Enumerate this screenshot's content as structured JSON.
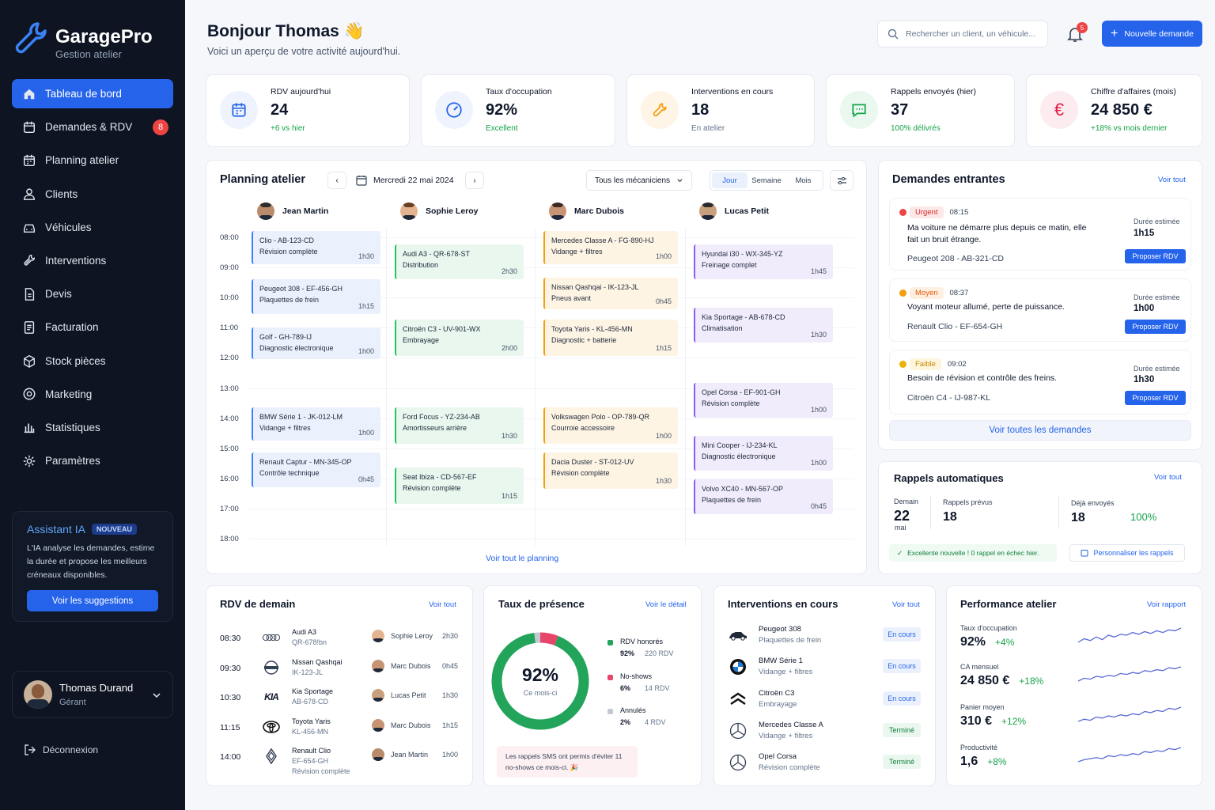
{
  "app": {
    "name": "GaragePro",
    "subtitle": "Gestion atelier"
  },
  "nav": [
    {
      "label": "Tableau de bord",
      "icon": "home-icon",
      "active": true
    },
    {
      "label": "Demandes & RDV",
      "icon": "calendar-icon",
      "badge": "8"
    },
    {
      "label": "Planning atelier",
      "icon": "calendar-grid-icon"
    },
    {
      "label": "Clients",
      "icon": "user-icon"
    },
    {
      "label": "Véhicules",
      "icon": "car-icon"
    },
    {
      "label": "Interventions",
      "icon": "tools-icon"
    },
    {
      "label": "Devis",
      "icon": "document-icon"
    },
    {
      "label": "Facturation",
      "icon": "invoice-icon"
    },
    {
      "label": "Stock pièces",
      "icon": "box-icon"
    },
    {
      "label": "Marketing",
      "icon": "target-icon"
    },
    {
      "label": "Statistiques",
      "icon": "bar-chart-icon"
    },
    {
      "label": "Paramètres",
      "icon": "gear-icon"
    }
  ],
  "ai": {
    "title": "Assistant IA",
    "badge": "NOUVEAU",
    "text": "L'IA analyse les demandes, estime la durée et propose les meilleurs créneaux disponibles.",
    "button": "Voir les suggestions"
  },
  "user": {
    "name": "Thomas Durand",
    "role": "Gérant"
  },
  "logout": "Déconnexion",
  "header": {
    "title": "Bonjour Thomas 👋",
    "subtitle": "Voici un aperçu de votre activité aujourd'hui.",
    "search_placeholder": "Rechercher un client, un véhicule...",
    "notif_count": "5",
    "new_button": "Nouvelle demande"
  },
  "kpis": [
    {
      "label": "RDV aujourd'hui",
      "value": "24",
      "sub": "+6 vs hier",
      "sub_color": "green",
      "icon": "calendar-icon"
    },
    {
      "label": "Taux d'occupation",
      "value": "92%",
      "sub": "Excellent",
      "sub_color": "green",
      "icon": "gauge-icon"
    },
    {
      "label": "Interventions en cours",
      "value": "18",
      "sub": "En atelier",
      "sub_color": "gray",
      "icon": "wrench-icon"
    },
    {
      "label": "Rappels envoyés (hier)",
      "value": "37",
      "sub": "100% délivrés",
      "sub_color": "green",
      "icon": "message-icon"
    },
    {
      "label": "Chiffre d'affaires (mois)",
      "value": "24 850 €",
      "sub": "+18% vs mois dernier",
      "sub_color": "green",
      "icon": "euro-icon"
    }
  ],
  "planning": {
    "title": "Planning atelier",
    "date": "Mercredi 22 mai 2024",
    "filter": "Tous les mécaniciens",
    "views": [
      "Jour",
      "Semaine",
      "Mois"
    ],
    "active_view": "Jour",
    "hours": [
      "08:00",
      "09:00",
      "10:00",
      "11:00",
      "12:00",
      "13:00",
      "14:00",
      "15:00",
      "16:00",
      "17:00",
      "18:00"
    ],
    "mechanics": [
      "Jean Martin",
      "Sophie Leroy",
      "Marc Dubois",
      "Lucas Petit"
    ],
    "events": [
      {
        "col": 0,
        "start": 8.0,
        "end": 9.1,
        "color": "blue",
        "title": "Clio - AB-123-CD",
        "desc": "Révision complète",
        "dur": "1h30"
      },
      {
        "col": 0,
        "start": 9.6,
        "end": 10.75,
        "color": "blue",
        "title": "Peugeot 308 - EF-456-GH",
        "desc": "Plaquettes de frein",
        "dur": "1h15"
      },
      {
        "col": 0,
        "start": 11.2,
        "end": 12.25,
        "color": "blue",
        "title": "Golf - GH-789-IJ",
        "desc": "Diagnostic électronique",
        "dur": "1h00"
      },
      {
        "col": 0,
        "start": 13.85,
        "end": 14.95,
        "color": "blue",
        "title": "BMW Série 1 - JK-012-LM",
        "desc": "Vidange + filtres",
        "dur": "1h00"
      },
      {
        "col": 0,
        "start": 15.35,
        "end": 16.5,
        "color": "blue",
        "title": "Renault Captur - MN-345-OP",
        "desc": "Contrôle technique",
        "dur": "0h45"
      },
      {
        "col": 1,
        "start": 8.45,
        "end": 9.6,
        "color": "green",
        "title": "Audi A3 - QR-678-ST",
        "desc": "Distribution",
        "dur": "2h30"
      },
      {
        "col": 1,
        "start": 10.95,
        "end": 12.15,
        "color": "green",
        "title": "Citroën C3 - UV-901-WX",
        "desc": "Embrayage",
        "dur": "2h00"
      },
      {
        "col": 1,
        "start": 13.85,
        "end": 15.05,
        "color": "green",
        "title": "Ford Focus - YZ-234-AB",
        "desc": "Amortisseurs arrière",
        "dur": "1h30"
      },
      {
        "col": 1,
        "start": 15.85,
        "end": 17.05,
        "color": "green",
        "title": "Seat Ibiza - CD-567-EF",
        "desc": "Révision complète",
        "dur": "1h15"
      },
      {
        "col": 2,
        "start": 8.0,
        "end": 9.1,
        "color": "orange",
        "title": "Mercedes Classe A - FG-890-HJ",
        "desc": "Vidange + filtres",
        "dur": "1h00"
      },
      {
        "col": 2,
        "start": 9.55,
        "end": 10.6,
        "color": "orange",
        "title": "Nissan Qashqai - IK-123-JL",
        "desc": "Pneus avant",
        "dur": "0h45"
      },
      {
        "col": 2,
        "start": 10.95,
        "end": 12.15,
        "color": "orange",
        "title": "Toyota Yaris - KL-456-MN",
        "desc": "Diagnostic + batterie",
        "dur": "1h15"
      },
      {
        "col": 2,
        "start": 13.85,
        "end": 15.05,
        "color": "orange",
        "title": "Volkswagen Polo - OP-789-QR",
        "desc": "Courroie accessoire",
        "dur": "1h00"
      },
      {
        "col": 2,
        "start": 15.35,
        "end": 16.55,
        "color": "orange",
        "title": "Dacia Duster - ST-012-UV",
        "desc": "Révision complète",
        "dur": "1h30"
      },
      {
        "col": 3,
        "start": 8.45,
        "end": 9.6,
        "color": "purple",
        "title": "Hyundai i30 - WX-345-YZ",
        "desc": "Freinage complet",
        "dur": "1h45"
      },
      {
        "col": 3,
        "start": 10.55,
        "end": 11.7,
        "color": "purple",
        "title": "Kia Sportage - AB-678-CD",
        "desc": "Climatisation",
        "dur": "1h30"
      },
      {
        "col": 3,
        "start": 13.05,
        "end": 14.2,
        "color": "purple",
        "title": "Opel Corsa - EF-901-GH",
        "desc": "Révision complète",
        "dur": "1h00"
      },
      {
        "col": 3,
        "start": 14.8,
        "end": 15.95,
        "color": "purple",
        "title": "Mini Cooper - IJ-234-KL",
        "desc": "Diagnostic électronique",
        "dur": "1h00"
      },
      {
        "col": 3,
        "start": 16.25,
        "end": 17.4,
        "color": "purple",
        "title": "Volvo XC40 - MN-567-OP",
        "desc": "Plaquettes de frein",
        "dur": "0h45"
      }
    ],
    "see_all": "Voir tout le planning"
  },
  "requests": {
    "title": "Demandes entrantes",
    "link": "Voir tout",
    "items": [
      {
        "priority": "Urgent",
        "time": "08:15",
        "text": "Ma voiture ne démarre plus depuis ce matin, elle fait un bruit étrange.",
        "car": "Peugeot 208 - AB-321-CD",
        "est_label": "Durée estimée",
        "est": "1h15",
        "button": "Proposer RDV",
        "tag_bg": "#fde8e8",
        "tag_color": "#dc2626",
        "dot": "#ef4444"
      },
      {
        "priority": "Moyen",
        "time": "08:37",
        "text": "Voyant moteur allumé, perte de puissance.",
        "car": "Renault Clio - EF-654-GH",
        "est_label": "Durée estimée",
        "est": "1h00",
        "button": "Proposer RDV",
        "tag_bg": "#fdf0e1",
        "tag_color": "#ea580c",
        "dot": "#f59e0b"
      },
      {
        "priority": "Faible",
        "time": "09:02",
        "text": "Besoin de révision et contrôle des freins.",
        "car": "Citroën C4 - IJ-987-KL",
        "est_label": "Durée estimée",
        "est": "1h30",
        "button": "Proposer RDV",
        "tag_bg": "#fdf6dd",
        "tag_color": "#ca8a04",
        "dot": "#eab308"
      }
    ],
    "see_all": "Voir toutes les demandes"
  },
  "reminders": {
    "title": "Rappels automatiques",
    "link": "Voir tout",
    "tomorrow_label": "Demain",
    "tomorrow_day": "22",
    "tomorrow_month": "mai",
    "planned_label": "Rappels prévus",
    "planned": "18",
    "sent_label": "Déjà envoyés",
    "sent": "18",
    "sent_pct": "100%",
    "success": "Excellente nouvelle ! 0 rappel en échec hier.",
    "customize": "Personnaliser les rappels"
  },
  "tomorrow_rdv": {
    "title": "RDV de demain",
    "link": "Voir tout",
    "rows": [
      {
        "time": "08:30",
        "brand": "audi-logo-icon",
        "car": "Audi A3",
        "plate": "QR-678!bn",
        "detail": "",
        "mech": "Sophie Leroy",
        "dur": "2h30"
      },
      {
        "time": "09:30",
        "brand": "nissan-logo-icon",
        "car": "Nissan Qashqai",
        "plate": "IK-123-JL",
        "detail": "",
        "mech": "Marc Dubois",
        "dur": "0h45"
      },
      {
        "time": "10:30",
        "brand": "kia-logo-icon",
        "car": "Kia Sportage",
        "plate": "AB-678-CD",
        "detail": "",
        "mech": "Lucas Petit",
        "dur": "1h30"
      },
      {
        "time": "11:15",
        "brand": "toyota-logo-icon",
        "car": "Toyota Yaris",
        "plate": "KL-456-MN",
        "detail": "",
        "mech": "Marc Dubois",
        "dur": "1h15"
      },
      {
        "time": "14:00",
        "brand": "renault-logo-icon",
        "car": "Renault Clio",
        "plate": "EF-654-GH",
        "detail": "Révision complète",
        "mech": "Jean Martin",
        "dur": "1h00"
      }
    ]
  },
  "presence": {
    "title": "Taux de présence",
    "link": "Voir le détail",
    "value": "92%",
    "caption": "Ce mois-ci",
    "segments": [
      {
        "label": "RDV honorés",
        "pct": "92%",
        "count": "220 RDV",
        "value": 92,
        "color": "#22a45a"
      },
      {
        "label": "No-shows",
        "pct": "6%",
        "count": "14 RDV",
        "value": 6,
        "color": "#e8456b"
      },
      {
        "label": "Annulés",
        "pct": "2%",
        "count": "4 RDV",
        "value": 2,
        "color": "#c3c9d3"
      }
    ],
    "note": "Les rappels SMS ont permis d'éviter 11 no-shows ce mois-ci. 🎉"
  },
  "interventions": {
    "title": "Interventions en cours",
    "link": "Voir tout",
    "rows": [
      {
        "icon": "car-icon",
        "car": "Peugeot 308",
        "work": "Plaquettes de frein",
        "status": "En cours",
        "kind": "progress"
      },
      {
        "icon": "bmw-logo-icon",
        "car": "BMW Série 1",
        "work": "Vidange + filtres",
        "status": "En cours",
        "kind": "progress"
      },
      {
        "icon": "citroen-logo-icon",
        "car": "Citroën C3",
        "work": "Embrayage",
        "status": "En cours",
        "kind": "progress"
      },
      {
        "icon": "mercedes-logo-icon",
        "car": "Mercedes Classe A",
        "work": "Vidange + filtres",
        "status": "Terminé",
        "kind": "done"
      },
      {
        "icon": "opel-logo-icon",
        "car": "Opel Corsa",
        "work": "Révision complète",
        "status": "Terminé",
        "kind": "done"
      }
    ]
  },
  "performance": {
    "title": "Performance atelier",
    "link": "Voir rapport",
    "metrics": [
      {
        "label": "Taux d'occupation",
        "value": "92%",
        "delta": "+4%"
      },
      {
        "label": "CA mensuel",
        "value": "24 850 €",
        "delta": "+18%"
      },
      {
        "label": "Panier moyen",
        "value": "310 €",
        "delta": "+12%"
      },
      {
        "label": "Productivité",
        "value": "1,6",
        "delta": "+8%"
      }
    ]
  }
}
